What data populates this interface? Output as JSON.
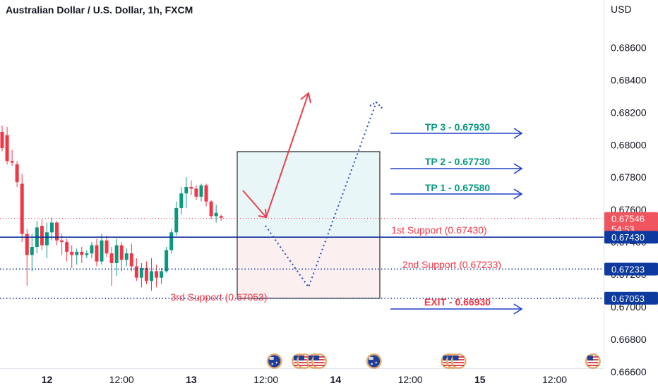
{
  "chart_data": {
    "type": "candlestick",
    "title": "Australian Dollar / U.S. Dollar, 1h, FXCM",
    "y_unit": "USD",
    "ylim": [
      0.6656,
      0.6882
    ],
    "y_ticks": [
      "0.68600",
      "0.68400",
      "0.68200",
      "0.68000",
      "0.67800",
      "0.67600",
      "0.67400",
      "0.67200",
      "0.67000",
      "0.66800",
      "0.66600"
    ],
    "y_tick_values": [
      0.686,
      0.684,
      0.682,
      0.68,
      0.678,
      0.676,
      0.674,
      0.672,
      0.67,
      0.668,
      0.666
    ],
    "x_ticks": [
      {
        "label": "12",
        "bold": true,
        "bar": 9
      },
      {
        "label": "12:00",
        "bold": false,
        "bar": 24
      },
      {
        "label": "13",
        "bold": true,
        "bar": 38
      },
      {
        "label": "12:00",
        "bold": false,
        "bar": 53
      },
      {
        "label": "14",
        "bold": true,
        "bar": 67
      },
      {
        "label": "12:00",
        "bold": false,
        "bar": 82
      },
      {
        "label": "15",
        "bold": true,
        "bar": 96
      },
      {
        "label": "12:00",
        "bold": false,
        "bar": 111
      }
    ],
    "candles": [
      {
        "o": 0.6808,
        "h": 0.6812,
        "l": 0.6796,
        "c": 0.6798
      },
      {
        "o": 0.6806,
        "h": 0.6811,
        "l": 0.6788,
        "c": 0.679
      },
      {
        "o": 0.679,
        "h": 0.6797,
        "l": 0.6787,
        "c": 0.6789
      },
      {
        "o": 0.6788,
        "h": 0.679,
        "l": 0.6774,
        "c": 0.6777
      },
      {
        "o": 0.6776,
        "h": 0.6782,
        "l": 0.674,
        "c": 0.6745
      },
      {
        "o": 0.6745,
        "h": 0.6748,
        "l": 0.6713,
        "c": 0.6732
      },
      {
        "o": 0.6732,
        "h": 0.6745,
        "l": 0.6722,
        "c": 0.6737
      },
      {
        "o": 0.6737,
        "h": 0.6753,
        "l": 0.6733,
        "c": 0.6749
      },
      {
        "o": 0.675,
        "h": 0.6754,
        "l": 0.6735,
        "c": 0.6738
      },
      {
        "o": 0.6738,
        "h": 0.6752,
        "l": 0.673,
        "c": 0.6746
      },
      {
        "o": 0.6746,
        "h": 0.6755,
        "l": 0.6741,
        "c": 0.6752
      },
      {
        "o": 0.6752,
        "h": 0.6753,
        "l": 0.6738,
        "c": 0.6741
      },
      {
        "o": 0.6741,
        "h": 0.6745,
        "l": 0.6732,
        "c": 0.674
      },
      {
        "o": 0.674,
        "h": 0.6742,
        "l": 0.6728,
        "c": 0.6734
      },
      {
        "o": 0.6734,
        "h": 0.6738,
        "l": 0.6724,
        "c": 0.6732
      },
      {
        "o": 0.6732,
        "h": 0.6736,
        "l": 0.6726,
        "c": 0.6734
      },
      {
        "o": 0.6734,
        "h": 0.6737,
        "l": 0.6727,
        "c": 0.6732
      },
      {
        "o": 0.6732,
        "h": 0.6735,
        "l": 0.673,
        "c": 0.6733
      },
      {
        "o": 0.6733,
        "h": 0.674,
        "l": 0.673,
        "c": 0.6738
      },
      {
        "o": 0.6738,
        "h": 0.6742,
        "l": 0.6725,
        "c": 0.6728
      },
      {
        "o": 0.6728,
        "h": 0.6745,
        "l": 0.6726,
        "c": 0.6741
      },
      {
        "o": 0.6741,
        "h": 0.6744,
        "l": 0.6731,
        "c": 0.6733
      },
      {
        "o": 0.6733,
        "h": 0.6737,
        "l": 0.6713,
        "c": 0.6727
      },
      {
        "o": 0.6727,
        "h": 0.6742,
        "l": 0.6719,
        "c": 0.6738
      },
      {
        "o": 0.6738,
        "h": 0.674,
        "l": 0.6722,
        "c": 0.6729
      },
      {
        "o": 0.6729,
        "h": 0.6736,
        "l": 0.6725,
        "c": 0.6733
      },
      {
        "o": 0.6733,
        "h": 0.6739,
        "l": 0.6722,
        "c": 0.6725
      },
      {
        "o": 0.6725,
        "h": 0.673,
        "l": 0.6716,
        "c": 0.6718
      },
      {
        "o": 0.6718,
        "h": 0.6727,
        "l": 0.6712,
        "c": 0.6724
      },
      {
        "o": 0.6724,
        "h": 0.6728,
        "l": 0.6714,
        "c": 0.6716
      },
      {
        "o": 0.6716,
        "h": 0.673,
        "l": 0.671,
        "c": 0.6722
      },
      {
        "o": 0.6722,
        "h": 0.6726,
        "l": 0.6712,
        "c": 0.6718
      },
      {
        "o": 0.6718,
        "h": 0.6724,
        "l": 0.6714,
        "c": 0.6722
      },
      {
        "o": 0.6722,
        "h": 0.6737,
        "l": 0.6721,
        "c": 0.6735
      },
      {
        "o": 0.6735,
        "h": 0.6748,
        "l": 0.6733,
        "c": 0.6746
      },
      {
        "o": 0.6746,
        "h": 0.6765,
        "l": 0.6744,
        "c": 0.6761
      },
      {
        "o": 0.6761,
        "h": 0.6774,
        "l": 0.6757,
        "c": 0.677
      },
      {
        "o": 0.677,
        "h": 0.678,
        "l": 0.6761,
        "c": 0.6774
      },
      {
        "o": 0.6774,
        "h": 0.6778,
        "l": 0.6769,
        "c": 0.6773
      },
      {
        "o": 0.6773,
        "h": 0.6775,
        "l": 0.6766,
        "c": 0.6768
      },
      {
        "o": 0.6768,
        "h": 0.6776,
        "l": 0.6765,
        "c": 0.6775
      },
      {
        "o": 0.6775,
        "h": 0.6776,
        "l": 0.6762,
        "c": 0.6765
      },
      {
        "o": 0.6765,
        "h": 0.6766,
        "l": 0.6754,
        "c": 0.6756
      },
      {
        "o": 0.6756,
        "h": 0.6763,
        "l": 0.6752,
        "c": 0.6758
      },
      {
        "o": 0.6756,
        "h": 0.6757,
        "l": 0.6753,
        "c": 0.6755
      }
    ],
    "last_price": "0.67546",
    "countdown": "54:53",
    "price_lines": [
      {
        "name": "support-1",
        "price": 0.6743,
        "tag": "0.67430",
        "style": "solid"
      },
      {
        "name": "support-2",
        "price": 0.67233,
        "tag": "0.67233",
        "style": "dotted"
      },
      {
        "name": "support-3",
        "price": 0.67053,
        "tag": "0.67053",
        "style": "dotted"
      }
    ],
    "annotations": {
      "tp3": "TP 3 - 0.67930",
      "tp2": "TP 2 - 0.67730",
      "tp1": "TP 1 - 0.67580",
      "exit": "EXIT - 0.66930",
      "support1": "1st Support (0.67430)",
      "support2": "2nd Support (0.67233)",
      "support3": "3rd Support (0.67053)"
    },
    "trade_box": {
      "top": 0.67958,
      "mid": 0.6743,
      "bottom": 0.67053
    },
    "event_markers": [
      {
        "bar": 54,
        "flag": "au"
      },
      {
        "bar": 59,
        "flag": "us"
      },
      {
        "bar": 60,
        "flag": "us"
      },
      {
        "bar": 62,
        "flag": "us"
      },
      {
        "bar": 63,
        "flag": "us"
      },
      {
        "bar": 74,
        "flag": "au"
      },
      {
        "bar": 89,
        "flag": "us"
      },
      {
        "bar": 90,
        "flag": "us"
      },
      {
        "bar": 91,
        "flag": "us"
      },
      {
        "bar": 118,
        "flag": "us"
      }
    ],
    "colors": {
      "up": "#089981",
      "down": "#f23645",
      "line_blue": "#0c3299",
      "arrow_blue": "#1e40c8",
      "tag_blue": "#0d3a9e",
      "box_top_fill": "#e8f6f8",
      "box_bottom_fill": "#fbeff0"
    }
  }
}
